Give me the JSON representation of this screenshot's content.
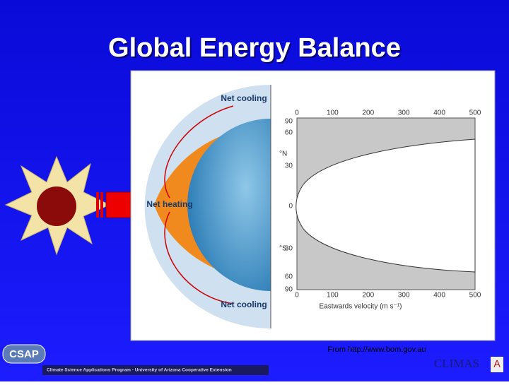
{
  "title": "Global Energy Balance",
  "diagram": {
    "labels": {
      "top": "Net cooling",
      "middle": "Net heating",
      "bottom": "Net cooling"
    },
    "latitude_ticks": [
      90,
      60,
      30,
      0,
      30,
      60,
      90
    ],
    "hemispheres": {
      "north": "°N",
      "south": "°S"
    },
    "velocity_ticks_top": [
      0,
      100,
      200,
      300,
      400,
      500
    ],
    "velocity_ticks_bottom": [
      0,
      100,
      200,
      300,
      400,
      500
    ],
    "x_axis_title": "Eastwards velocity (m s⁻¹)"
  },
  "source": "From http://www.bom.gov.au",
  "footer": {
    "logo": "CSAP",
    "program": "Climate Science Applications Program - University of Arizona Cooperative Extension",
    "brand": "CLIMAS",
    "brand_mark": "A"
  }
}
